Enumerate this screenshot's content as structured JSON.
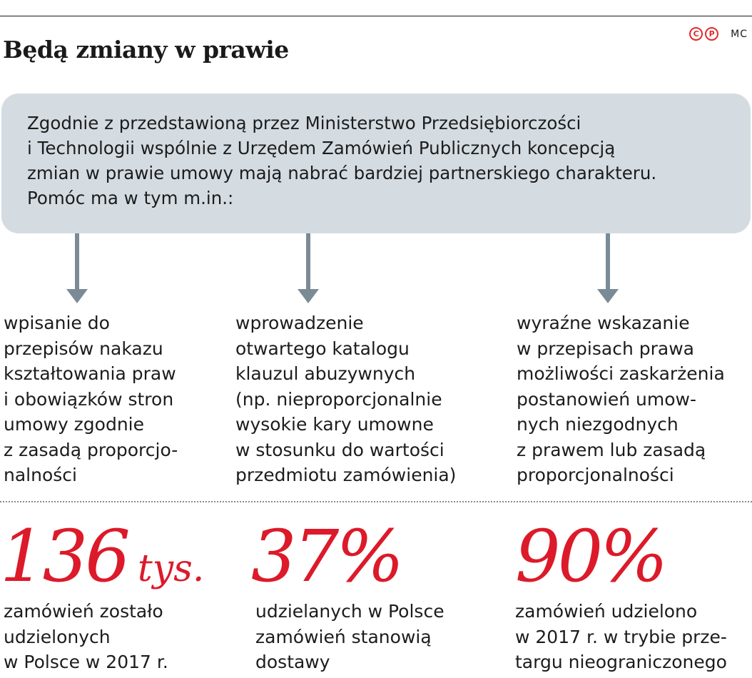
{
  "header": {
    "title": "Będą zmiany w prawie",
    "badges": [
      "C",
      "P"
    ],
    "author": "MC",
    "badge_color": "#e32b2b"
  },
  "intro": {
    "text": "Zgodnie z przedstawioną przez Ministerstwo Przedsiębiorczości\ni Technologii wspólnie z Urzędem Zamówień Publicznych koncepcją\nzmian w prawie umowy mają nabrać bardziej partnerskiego charakteru.\nPomóc ma w tym m.in.:",
    "box_color": "#d4dce2"
  },
  "arrow_color": "#7b8b96",
  "items": [
    {
      "text": "wpisanie do\nprzepisów nakazu\nkształtowania praw\ni obowiązków stron\numowy zgodnie\nz zasadą proporcjo-\nnalności"
    },
    {
      "text": "wprowadzenie\notwartego katalogu\nklauzul abuzywnych\n(np. nieproporcjonalnie\nwysokie kary umowne\nw stosunku do wartości\nprzedmiotu zamówienia)"
    },
    {
      "text": "wyraźne wskazanie\nw przepisach prawa\nmożliwości zaskarżenia\npostanowień umow-\nnych niezgodnych\nz prawem lub zasadą\nproporcjonalności"
    }
  ],
  "stats": [
    {
      "value": "136",
      "unit": "tys.",
      "description": "zamówień zostało\nudzielonych\nw Polsce w 2017 r."
    },
    {
      "value": "37%",
      "unit": "",
      "description": "udzielanych w Polsce\nzamówień stanowią\ndostawy"
    },
    {
      "value": "90%",
      "unit": "",
      "description": "zamówień udzielono\nw 2017 r. w trybie prze-\ntargu nieograniczonego"
    }
  ],
  "stat_color": "#dc1a2a"
}
